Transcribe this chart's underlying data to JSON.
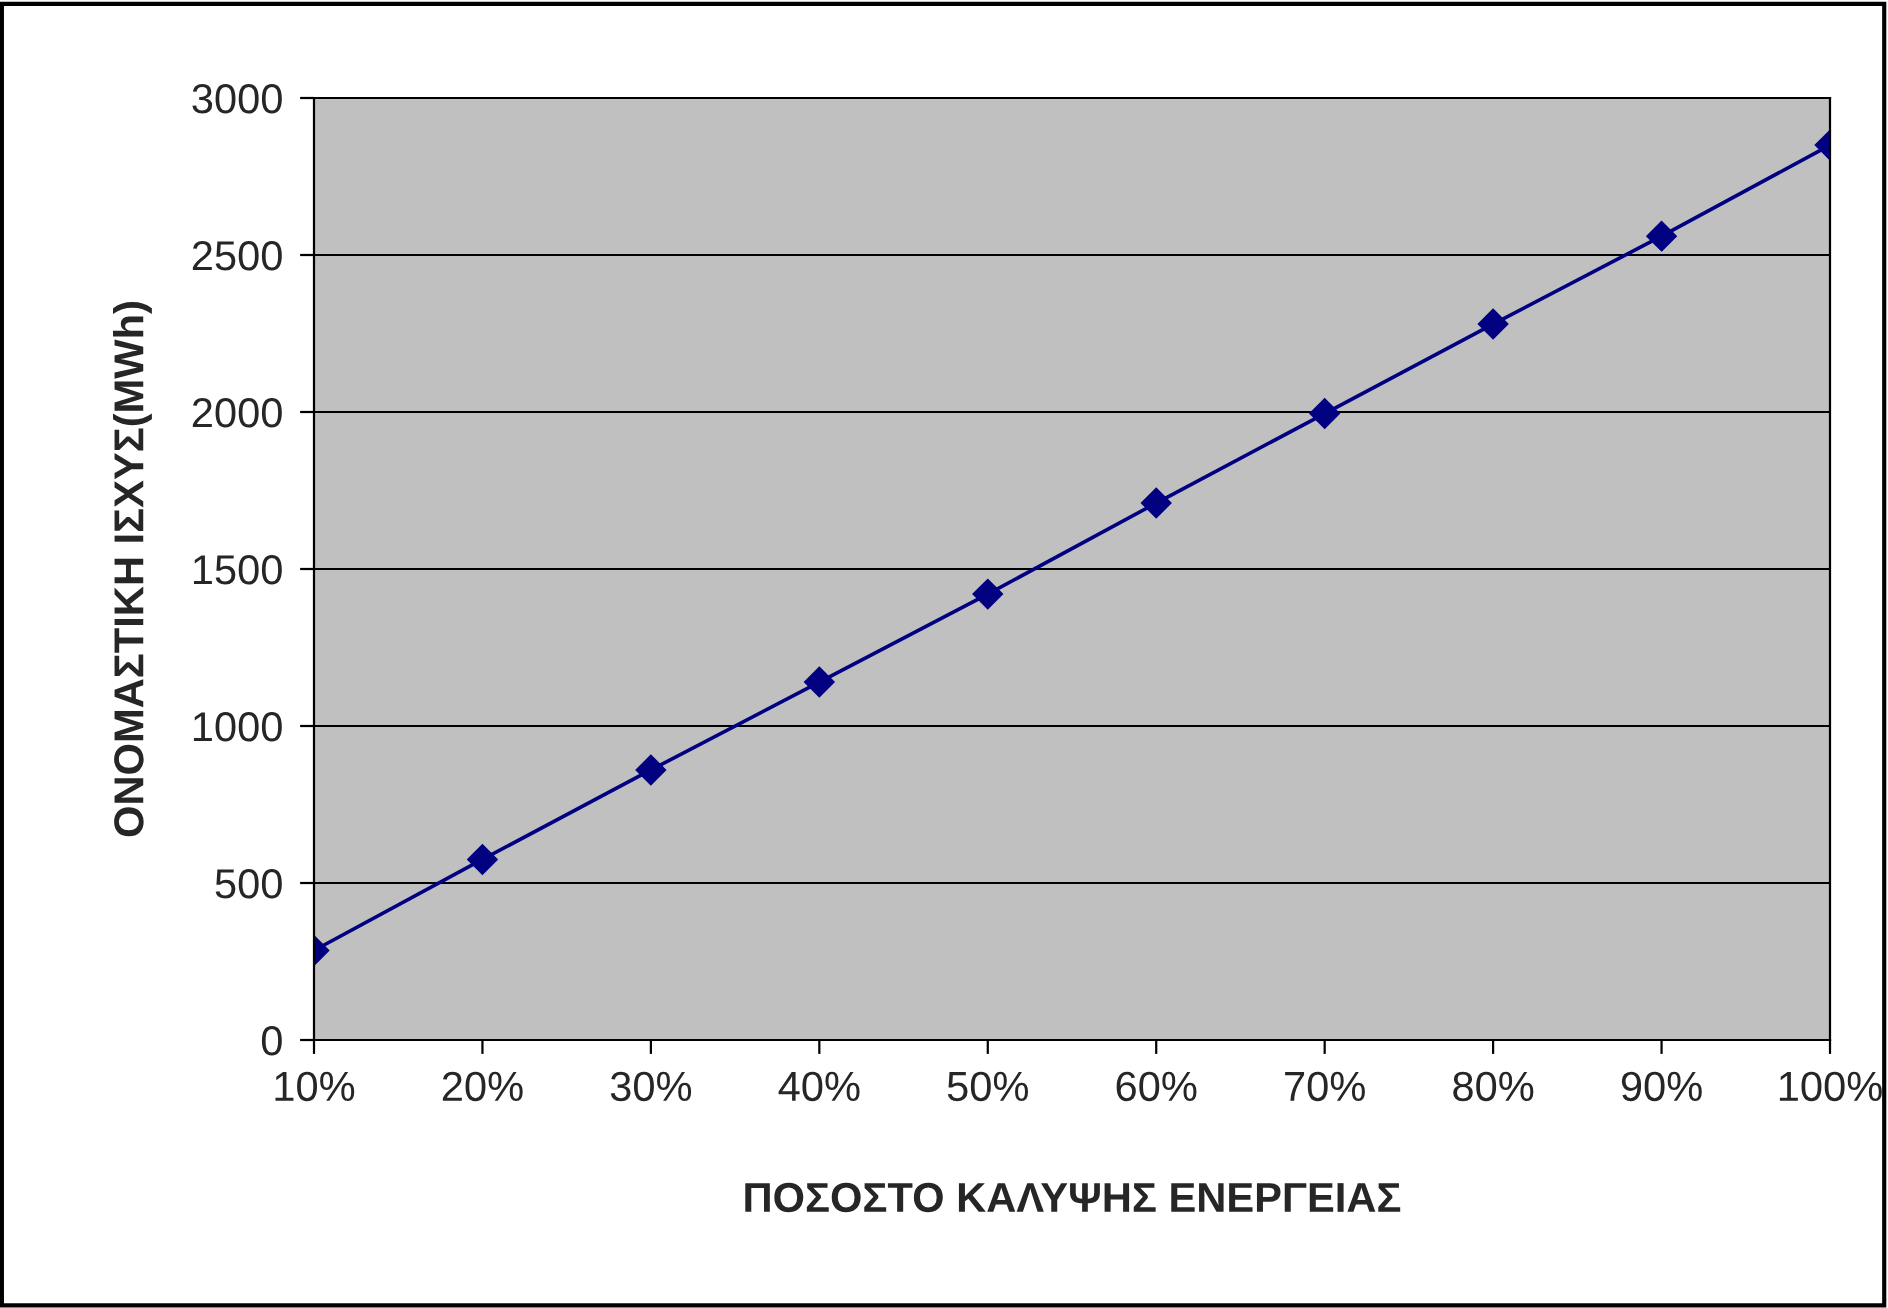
{
  "chart_data": {
    "type": "line",
    "xlabel": "ΠΟΣΟΣΤΟ ΚΑΛΥΨΗΣ ΕΝΕΡΓΕΙΑΣ",
    "ylabel": "ΟΝΟΜΑΣΤΙΚΗ ΙΣΧΥΣ(MWh)",
    "categories": [
      "10%",
      "20%",
      "30%",
      "40%",
      "50%",
      "60%",
      "70%",
      "80%",
      "90%",
      "100%"
    ],
    "series": [
      {
        "color": "#000080",
        "values": [
          285,
          575,
          860,
          1140,
          1420,
          1710,
          1995,
          2280,
          2560,
          2850
        ]
      }
    ],
    "ylim": [
      0,
      3000
    ],
    "yticks": [
      0,
      500,
      1000,
      1500,
      2000,
      2500,
      3000
    ],
    "grid": "y",
    "marker": "diamond",
    "line_style": "solid"
  }
}
